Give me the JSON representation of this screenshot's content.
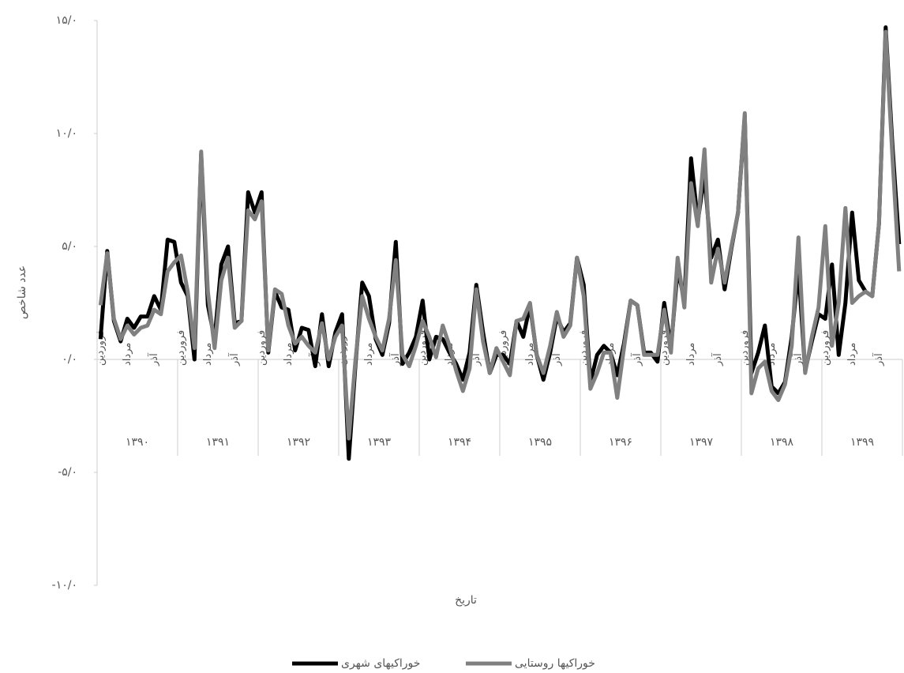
{
  "chart_data": {
    "type": "line",
    "x_label": "تاریخ",
    "y_label": "عدد شاخص",
    "categories": [
      "فروردین",
      null,
      null,
      null,
      "مرداد",
      null,
      null,
      null,
      "آذر",
      null,
      null,
      null,
      "فروردین",
      null,
      null,
      null,
      "مرداد",
      null,
      null,
      null,
      "آذر",
      null,
      null,
      null,
      "فروردین",
      null,
      null,
      null,
      "مرداد",
      null,
      null,
      null,
      "آذر",
      null,
      null,
      null,
      "فروردین",
      null,
      null,
      null,
      "مرداد",
      null,
      null,
      null,
      "آذر",
      null,
      null,
      null,
      "فروردین",
      null,
      null,
      null,
      "مرداد",
      null,
      null,
      null,
      "آذر",
      null,
      null,
      null,
      "فروردین",
      null,
      null,
      null,
      "مرداد",
      null,
      null,
      null,
      "آذر",
      null,
      null,
      null,
      "فروردین",
      null,
      null,
      null,
      "مرداد",
      null,
      null,
      null,
      "آذر",
      null,
      null,
      null,
      "فروردین",
      null,
      null,
      null,
      "مرداد",
      null,
      null,
      null,
      "آذر",
      null,
      null,
      null,
      "فروردین",
      null,
      null,
      null,
      "مرداد",
      null,
      null,
      null,
      "آذر",
      null,
      null,
      null,
      "فروردین",
      null,
      null,
      null,
      "مرداد",
      null,
      null,
      null,
      "آذر",
      null,
      null,
      null
    ],
    "groups": [
      "۱۳۹۰",
      "۱۳۹۱",
      "۱۳۹۲",
      "۱۳۹۳",
      "۱۳۹۴",
      "۱۳۹۵",
      "۱۳۹۶",
      "۱۳۹۷",
      "۱۳۹۸",
      "۱۳۹۹"
    ],
    "series": [
      {
        "name": "خوراکیهای شهری",
        "color": "#000000",
        "values": [
          0.9,
          4.8,
          1.7,
          0.8,
          1.8,
          1.4,
          1.9,
          1.9,
          2.8,
          2.2,
          5.3,
          5.2,
          3.4,
          2.8,
          0.0,
          9.1,
          2.4,
          0.9,
          4.2,
          5.0,
          1.6,
          1.7,
          7.4,
          6.5,
          7.4,
          0.3,
          3.0,
          2.3,
          2.2,
          0.4,
          1.4,
          1.3,
          -0.3,
          2.0,
          -0.3,
          1.2,
          2.0,
          -4.4,
          -0.2,
          3.4,
          2.8,
          0.9,
          0.2,
          1.6,
          5.2,
          -0.2,
          0.3,
          1.0,
          2.6,
          0.0,
          1.0,
          0.9,
          0.3,
          -0.2,
          -0.9,
          0.3,
          3.3,
          1.2,
          -0.6,
          0.2,
          0.2,
          -0.2,
          1.7,
          1.0,
          2.4,
          0.2,
          -0.9,
          0.3,
          1.9,
          1.2,
          1.6,
          4.5,
          3.3,
          -1.0,
          0.2,
          0.6,
          0.3,
          -0.7,
          0.7,
          2.6,
          2.4,
          0.3,
          0.3,
          -0.1,
          2.5,
          0.5,
          4.0,
          2.6,
          8.9,
          6.1,
          8.2,
          4.5,
          5.3,
          3.1,
          4.9,
          6.5,
          10.8,
          -0.6,
          0.3,
          1.5,
          -1.2,
          -1.5,
          -1.0,
          1.0,
          4.0,
          -0.5,
          0.8,
          2.0,
          1.8,
          4.2,
          0.2,
          2.5,
          6.5,
          3.5,
          3.0,
          2.8,
          6.0,
          14.7,
          9.5,
          5.1
        ]
      },
      {
        "name": "خوراکیها روستایی",
        "color": "#808080",
        "values": [
          2.4,
          4.7,
          1.8,
          0.9,
          1.5,
          1.1,
          1.4,
          1.5,
          2.2,
          2.0,
          3.9,
          4.3,
          4.6,
          3.0,
          0.5,
          9.2,
          3.0,
          0.5,
          3.5,
          4.5,
          1.4,
          1.7,
          6.6,
          6.2,
          7.0,
          0.4,
          3.1,
          2.9,
          1.5,
          0.7,
          1.0,
          0.6,
          0.3,
          1.6,
          0.0,
          1.0,
          1.5,
          -3.5,
          0.0,
          2.8,
          1.8,
          1.0,
          0.4,
          1.8,
          4.4,
          0.2,
          -0.3,
          0.6,
          1.7,
          1.0,
          0.1,
          1.5,
          0.6,
          -0.5,
          -1.4,
          -0.4,
          3.1,
          0.8,
          -0.6,
          0.5,
          -0.1,
          -0.7,
          1.7,
          1.8,
          2.5,
          0.2,
          -0.6,
          0.6,
          2.1,
          1.0,
          1.5,
          4.5,
          2.8,
          -1.3,
          -0.6,
          0.3,
          0.3,
          -1.7,
          0.5,
          2.6,
          2.4,
          0.2,
          0.2,
          0.2,
          2.2,
          0.3,
          4.5,
          2.3,
          7.8,
          5.9,
          9.3,
          3.4,
          4.9,
          3.4,
          5.0,
          6.5,
          10.9,
          -1.5,
          -0.4,
          -0.1,
          -1.4,
          -1.8,
          -1.1,
          0.6,
          5.4,
          -0.6,
          1.0,
          2.3,
          5.9,
          0.6,
          2.5,
          6.7,
          2.5,
          2.8,
          3.0,
          2.8,
          6.0,
          14.5,
          9.0,
          3.9
        ]
      }
    ],
    "ylim": [
      -10,
      15
    ],
    "yticks": [
      {
        "value": -10,
        "label": "-۱۰/۰"
      },
      {
        "value": -5,
        "label": "-۵/۰"
      },
      {
        "value": 0,
        "label": "۰/۰"
      },
      {
        "value": 5,
        "label": "۵/۰"
      },
      {
        "value": 10,
        "label": "۱۰/۰"
      },
      {
        "value": 15,
        "label": "۱۵/۰"
      }
    ],
    "grid": false,
    "legend": "bottom"
  }
}
